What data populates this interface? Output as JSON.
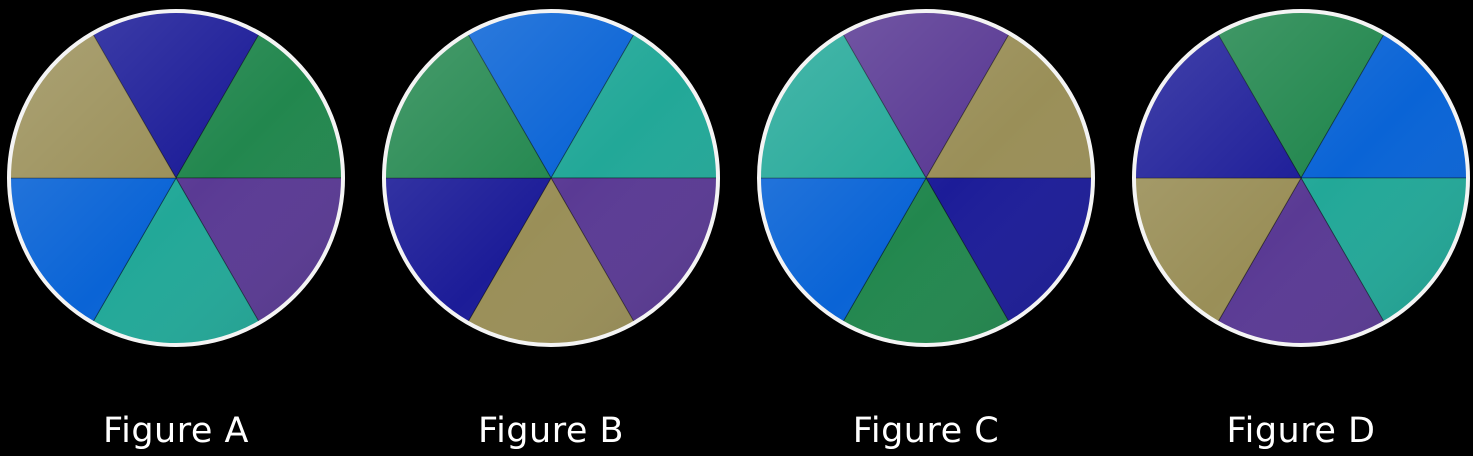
{
  "palette": {
    "blue": "#0a64d6",
    "navy": "#1c1c98",
    "green": "#22874e",
    "purple": "#5a3a94",
    "teal": "#22a898",
    "olive": "#9a8f58",
    "rim": "#f4f4f4",
    "background": "#000000"
  },
  "figures": [
    {
      "label": "Figure A",
      "segments": [
        "navy",
        "green",
        "purple",
        "teal",
        "blue",
        "olive"
      ]
    },
    {
      "label": "Figure B",
      "segments": [
        "blue",
        "teal",
        "purple",
        "olive",
        "navy",
        "green"
      ]
    },
    {
      "label": "Figure C",
      "segments": [
        "purple",
        "olive",
        "navy",
        "green",
        "blue",
        "teal"
      ]
    },
    {
      "label": "Figure D",
      "segments": [
        "green",
        "blue",
        "teal",
        "purple",
        "olive",
        "navy"
      ]
    }
  ]
}
